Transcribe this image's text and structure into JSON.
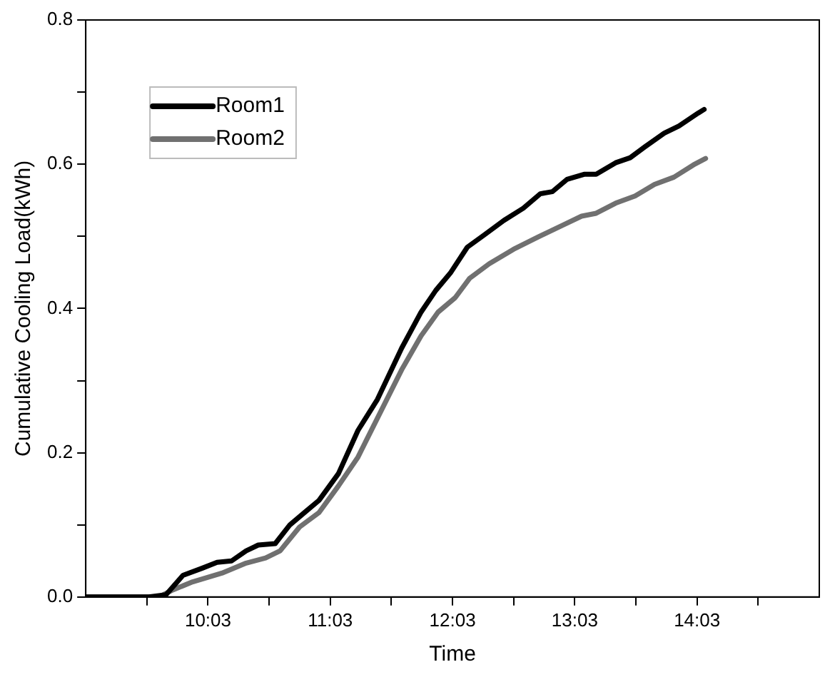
{
  "chart_data": {
    "type": "line",
    "xlabel": "Time",
    "ylabel": "Cumulative Cooling Load(kWh)",
    "xlim": [
      9.05,
      15.05
    ],
    "xticks": [
      {
        "value": 9.55,
        "label": null
      },
      {
        "value": 10.05,
        "label": "10:03"
      },
      {
        "value": 10.55,
        "label": null
      },
      {
        "value": 11.05,
        "label": "11:03"
      },
      {
        "value": 11.55,
        "label": null
      },
      {
        "value": 12.05,
        "label": "12:03"
      },
      {
        "value": 12.55,
        "label": null
      },
      {
        "value": 13.05,
        "label": "13:03"
      },
      {
        "value": 13.55,
        "label": null
      },
      {
        "value": 14.05,
        "label": "14:03"
      },
      {
        "value": 14.55,
        "label": null
      }
    ],
    "ylim": [
      0,
      0.8
    ],
    "yticks": [
      {
        "value": 0,
        "label": "0.0"
      },
      {
        "value": 0.1,
        "label": null
      },
      {
        "value": 0.2,
        "label": "0.2"
      },
      {
        "value": 0.3,
        "label": null
      },
      {
        "value": 0.4,
        "label": "0.4"
      },
      {
        "value": 0.5,
        "label": null
      },
      {
        "value": 0.6,
        "label": "0.6"
      },
      {
        "value": 0.7,
        "label": null
      },
      {
        "value": 0.8,
        "label": "0.8"
      }
    ],
    "grid": false,
    "legend": "top left",
    "marker": "none",
    "line_style": "solid",
    "series": [
      {
        "name": "Room1",
        "color": "#000000",
        "x": [
          9.05,
          9.567,
          9.706,
          9.845,
          10.004,
          10.124,
          10.243,
          10.362,
          10.461,
          10.6,
          10.72,
          10.839,
          10.958,
          11.117,
          11.277,
          11.436,
          11.634,
          11.793,
          11.913,
          12.032,
          12.171,
          12.31,
          12.47,
          12.629,
          12.768,
          12.867,
          12.987,
          13.126,
          13.225,
          13.384,
          13.503,
          13.623,
          13.782,
          13.902,
          14.06,
          14.108
        ],
        "values": [
          0,
          0,
          0.003,
          0.03,
          0.04,
          0.048,
          0.05,
          0.064,
          0.072,
          0.074,
          0.1,
          0.117,
          0.134,
          0.171,
          0.231,
          0.274,
          0.345,
          0.395,
          0.425,
          0.449,
          0.485,
          0.502,
          0.522,
          0.539,
          0.559,
          0.562,
          0.579,
          0.586,
          0.586,
          0.602,
          0.609,
          0.624,
          0.643,
          0.653,
          0.671,
          0.676
        ]
      },
      {
        "name": "Room2",
        "color": "#707070",
        "x": [
          9.05,
          9.646,
          9.766,
          9.925,
          10.163,
          10.362,
          10.521,
          10.64,
          10.799,
          10.958,
          11.117,
          11.277,
          11.436,
          11.634,
          11.793,
          11.932,
          12.072,
          12.191,
          12.35,
          12.549,
          12.748,
          12.946,
          13.106,
          13.225,
          13.384,
          13.543,
          13.702,
          13.861,
          14.02,
          14.12
        ],
        "values": [
          0,
          0,
          0.01,
          0.021,
          0.033,
          0.047,
          0.054,
          0.064,
          0.097,
          0.117,
          0.154,
          0.194,
          0.248,
          0.315,
          0.362,
          0.395,
          0.415,
          0.442,
          0.462,
          0.482,
          0.499,
          0.515,
          0.528,
          0.532,
          0.546,
          0.556,
          0.572,
          0.582,
          0.599,
          0.608
        ]
      }
    ]
  }
}
